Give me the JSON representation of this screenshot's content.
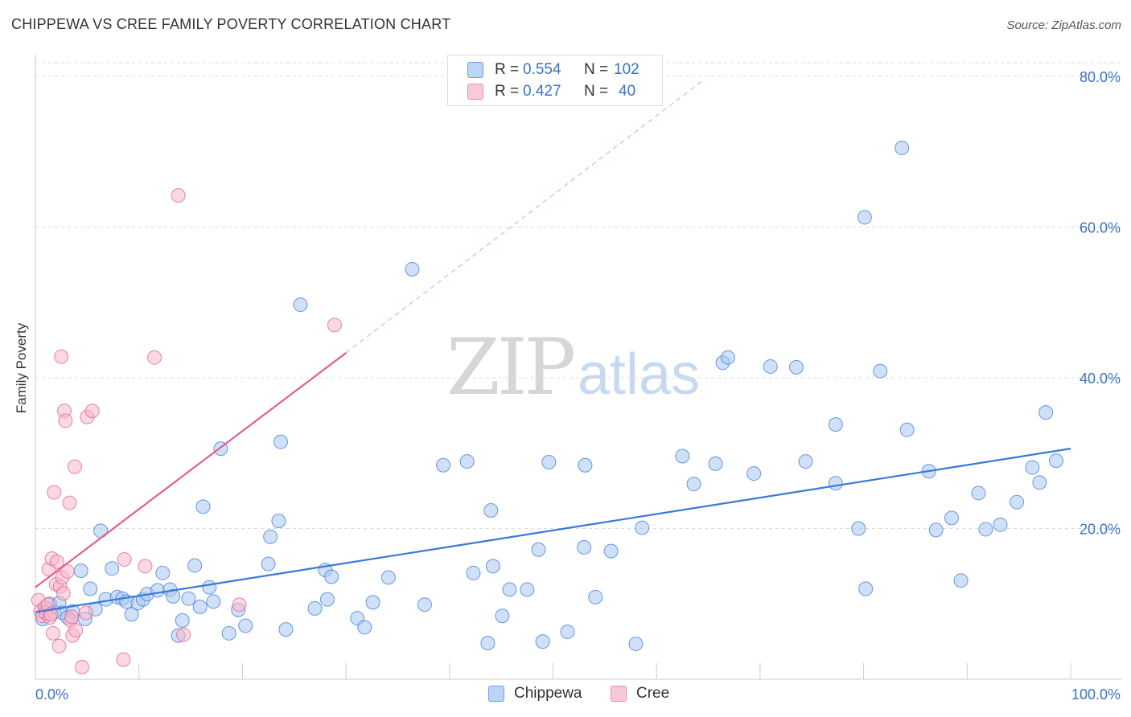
{
  "title": "CHIPPEWA VS CREE FAMILY POVERTY CORRELATION CHART",
  "source": "Source: ZipAtlas.com",
  "watermark": {
    "zip": "ZIP",
    "atlas": "atlas"
  },
  "legend": {
    "rows": [
      {
        "r_label": "R =",
        "r_value": "0.554",
        "n_label": "N =",
        "n_value": "102",
        "color": "#6aa0e8",
        "fill": "#bcd4f5"
      },
      {
        "r_label": "R =",
        "r_value": "0.427",
        "n_label": "N =",
        "n_value": "40",
        "color": "#f08aaa",
        "fill": "#fac9d8"
      }
    ]
  },
  "bottom_legend": [
    {
      "label": "Chippewa",
      "color": "#6aa0e8",
      "fill": "#bcd4f5"
    },
    {
      "label": "Cree",
      "color": "#f08aaa",
      "fill": "#fac9d8"
    }
  ],
  "chart_data": {
    "type": "scatter",
    "xlabel": "",
    "ylabel": "Family Poverty",
    "xlim": [
      0,
      100
    ],
    "ylim": [
      0,
      80
    ],
    "x_tick_labels": [
      "0.0%",
      "100.0%"
    ],
    "y_tick_labels": [
      "20.0%",
      "40.0%",
      "60.0%",
      "80.0%"
    ],
    "y_ticks": [
      20,
      40,
      60,
      80
    ],
    "grid": true,
    "legend_position": "top-center",
    "series": [
      {
        "name": "Chippewa",
        "color": "#3a78d8",
        "fill": "#a9c8f0",
        "trend": {
          "x": [
            0,
            100
          ],
          "y": [
            8.9,
            30.6
          ],
          "style": "solid"
        },
        "points": [
          [
            0.7,
            8.0
          ],
          [
            1.0,
            9.3
          ],
          [
            1.4,
            10.0
          ],
          [
            1.8,
            8.9
          ],
          [
            2.3,
            10.1
          ],
          [
            2.6,
            8.8
          ],
          [
            3.1,
            8.2
          ],
          [
            3.6,
            9.0
          ],
          [
            4.4,
            14.4
          ],
          [
            4.8,
            8.0
          ],
          [
            5.3,
            12.0
          ],
          [
            5.8,
            9.3
          ],
          [
            6.3,
            19.7
          ],
          [
            6.8,
            10.6
          ],
          [
            7.4,
            14.7
          ],
          [
            7.9,
            10.9
          ],
          [
            8.4,
            10.7
          ],
          [
            8.8,
            10.3
          ],
          [
            9.3,
            8.6
          ],
          [
            9.9,
            10.1
          ],
          [
            10.4,
            10.6
          ],
          [
            10.8,
            11.3
          ],
          [
            11.8,
            11.8
          ],
          [
            12.3,
            14.1
          ],
          [
            13.0,
            11.9
          ],
          [
            13.3,
            11.0
          ],
          [
            14.2,
            7.8
          ],
          [
            14.8,
            10.7
          ],
          [
            13.8,
            5.8
          ],
          [
            15.4,
            15.1
          ],
          [
            15.9,
            9.6
          ],
          [
            16.2,
            22.9
          ],
          [
            16.8,
            12.2
          ],
          [
            17.2,
            10.3
          ],
          [
            17.9,
            30.6
          ],
          [
            18.7,
            6.1
          ],
          [
            19.6,
            9.2
          ],
          [
            20.3,
            7.1
          ],
          [
            22.5,
            15.3
          ],
          [
            22.7,
            18.9
          ],
          [
            23.5,
            21.0
          ],
          [
            23.7,
            31.5
          ],
          [
            24.2,
            6.6
          ],
          [
            25.6,
            49.7
          ],
          [
            27.0,
            9.4
          ],
          [
            28.0,
            14.5
          ],
          [
            28.2,
            10.6
          ],
          [
            28.6,
            13.6
          ],
          [
            31.1,
            8.1
          ],
          [
            31.8,
            6.9
          ],
          [
            32.6,
            10.2
          ],
          [
            34.1,
            13.5
          ],
          [
            36.4,
            54.4
          ],
          [
            37.6,
            9.9
          ],
          [
            39.4,
            28.4
          ],
          [
            41.7,
            28.9
          ],
          [
            42.3,
            14.1
          ],
          [
            43.7,
            4.8
          ],
          [
            44.0,
            22.4
          ],
          [
            44.2,
            15.0
          ],
          [
            45.1,
            8.4
          ],
          [
            45.8,
            11.9
          ],
          [
            47.5,
            11.9
          ],
          [
            48.6,
            17.2
          ],
          [
            49.0,
            5.0
          ],
          [
            49.6,
            28.8
          ],
          [
            51.4,
            6.3
          ],
          [
            53.0,
            17.5
          ],
          [
            53.1,
            28.4
          ],
          [
            54.1,
            10.9
          ],
          [
            55.6,
            17.0
          ],
          [
            58.0,
            4.7
          ],
          [
            58.6,
            20.1
          ],
          [
            62.5,
            29.6
          ],
          [
            63.6,
            25.9
          ],
          [
            65.7,
            28.6
          ],
          [
            66.4,
            42.0
          ],
          [
            66.9,
            42.7
          ],
          [
            69.4,
            27.3
          ],
          [
            71.0,
            41.5
          ],
          [
            73.5,
            41.4
          ],
          [
            74.4,
            28.9
          ],
          [
            77.3,
            33.8
          ],
          [
            77.3,
            26.0
          ],
          [
            79.5,
            20.0
          ],
          [
            80.1,
            61.3
          ],
          [
            80.2,
            12.0
          ],
          [
            81.6,
            40.9
          ],
          [
            83.7,
            70.5
          ],
          [
            84.2,
            33.1
          ],
          [
            86.3,
            27.6
          ],
          [
            87.0,
            19.8
          ],
          [
            88.5,
            21.4
          ],
          [
            89.4,
            13.1
          ],
          [
            91.1,
            24.7
          ],
          [
            91.8,
            19.9
          ],
          [
            93.2,
            20.5
          ],
          [
            94.8,
            23.5
          ],
          [
            96.3,
            28.1
          ],
          [
            97.0,
            26.1
          ],
          [
            97.6,
            35.4
          ],
          [
            98.6,
            29.0
          ]
        ]
      },
      {
        "name": "Cree",
        "color": "#e06088",
        "fill": "#f7b8cc",
        "trend": {
          "x": [
            0,
            30
          ],
          "y": [
            12.2,
            43.3
          ],
          "style": "solid"
        },
        "trend_ext": {
          "x": [
            30,
            64.5
          ],
          "y": [
            43.3,
            79.5
          ],
          "style": "dashed"
        },
        "points": [
          [
            0.3,
            10.5
          ],
          [
            0.5,
            9.0
          ],
          [
            0.7,
            8.4
          ],
          [
            0.9,
            9.5
          ],
          [
            1.0,
            8.8
          ],
          [
            1.2,
            9.9
          ],
          [
            1.3,
            14.6
          ],
          [
            1.4,
            8.2
          ],
          [
            1.5,
            8.6
          ],
          [
            1.6,
            16.0
          ],
          [
            1.7,
            6.1
          ],
          [
            1.8,
            24.8
          ],
          [
            2.0,
            12.6
          ],
          [
            2.1,
            15.6
          ],
          [
            2.3,
            4.4
          ],
          [
            2.4,
            12.3
          ],
          [
            2.5,
            42.8
          ],
          [
            2.6,
            13.5
          ],
          [
            2.7,
            11.4
          ],
          [
            2.8,
            35.6
          ],
          [
            2.9,
            34.3
          ],
          [
            3.1,
            14.3
          ],
          [
            3.3,
            23.4
          ],
          [
            3.4,
            7.8
          ],
          [
            3.5,
            8.3
          ],
          [
            3.6,
            5.8
          ],
          [
            3.8,
            28.2
          ],
          [
            3.9,
            6.5
          ],
          [
            4.5,
            1.6
          ],
          [
            4.9,
            8.8
          ],
          [
            5.0,
            34.8
          ],
          [
            5.5,
            35.6
          ],
          [
            8.5,
            2.6
          ],
          [
            8.6,
            15.9
          ],
          [
            10.6,
            15.0
          ],
          [
            11.5,
            42.7
          ],
          [
            13.8,
            64.2
          ],
          [
            14.3,
            5.9
          ],
          [
            19.7,
            9.9
          ],
          [
            28.9,
            47.0
          ]
        ]
      }
    ]
  }
}
